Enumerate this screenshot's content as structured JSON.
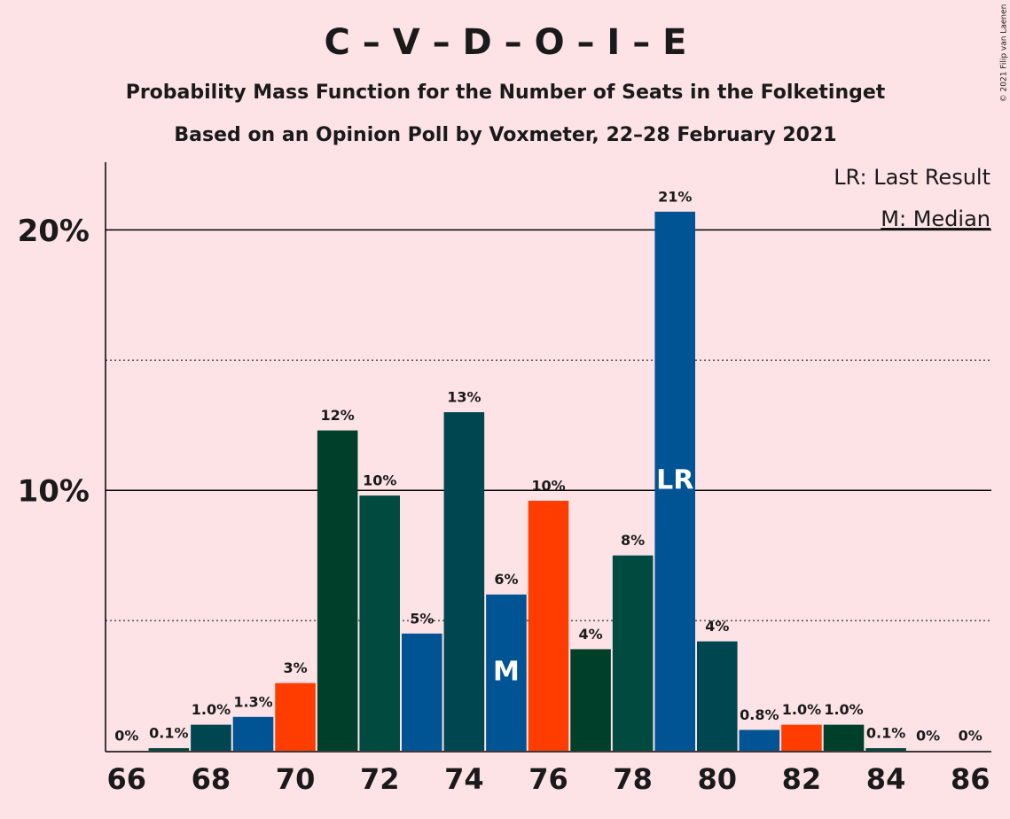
{
  "chart_data": {
    "type": "bar",
    "title": "C – V – D – O – I – E",
    "subtitle": "Probability Mass Function for the Number of Seats in the Folketinget",
    "subtitle2": "Based on an Opinion Poll by Voxmeter, 22–28 February 2021",
    "credit": "© 2021 Filip van Laenen",
    "categories": [
      66,
      null,
      68,
      null,
      70,
      null,
      72,
      null,
      74,
      null,
      76,
      null,
      78,
      null,
      80,
      null,
      82,
      null,
      84,
      null,
      86
    ],
    "values": [
      0,
      0.1,
      1.0,
      1.3,
      2.6,
      12.3,
      9.8,
      4.5,
      13.0,
      6.0,
      9.6,
      3.9,
      7.5,
      20.7,
      4.2,
      0.8,
      1.0,
      1.0,
      0.1,
      0,
      0
    ],
    "value_labels": [
      "0%",
      "0.1%",
      "1.0%",
      "1.3%",
      "3%",
      "12%",
      "10%",
      "5%",
      "13%",
      "6%",
      "10%",
      "4%",
      "8%",
      "21%",
      "4%",
      "0.8%",
      "1.0%",
      "1.0%",
      "0.1%",
      "0%",
      "0%"
    ],
    "colors": [
      "#004651",
      "#004a3f",
      "#004651",
      "#005493",
      "#ff3d00",
      "#00402a",
      "#004a3f",
      "#005493",
      "#004651",
      "#005493",
      "#ff3d00",
      "#00402a",
      "#004a3f",
      "#005493",
      "#004651",
      "#005493",
      "#ff3d00",
      "#00402a",
      "#004a3f",
      "#005493",
      "#004651"
    ],
    "ylim": [
      0,
      22.6
    ],
    "yticks": [
      {
        "value": 10,
        "label": "10%"
      },
      {
        "value": 20,
        "label": "20%"
      }
    ],
    "minor_grid": [
      5,
      15
    ],
    "last_result": {
      "label": "LR",
      "category": 79,
      "legend": "LR: Last Result"
    },
    "median": {
      "label": "M",
      "category": 75,
      "legend": "M: Median"
    }
  }
}
